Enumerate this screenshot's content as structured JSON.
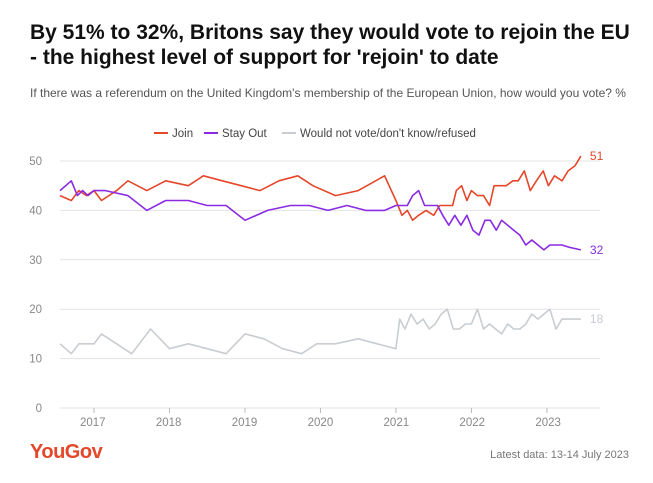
{
  "header": {
    "title": "By 51% to 32%, Britons say they would vote to rejoin the EU - the highest level of support for 'rejoin' to date",
    "subtitle": "If there was a referendum on the United Kingdom's membership of the European Union, how would you vote? %"
  },
  "footer": {
    "brand": "YouGov",
    "latest": "Latest data: 13-14 July 2023"
  },
  "colors": {
    "join": "#e4472a",
    "stay_out": "#8a2be2",
    "would_not_vote": "#c9cdd1",
    "grid": "#e3e3e3",
    "axis_text": "#888888"
  },
  "chart_data": {
    "type": "line",
    "title": "By 51% to 32%, Britons say they would vote to rejoin the EU - the highest level of support for 'rejoin' to date",
    "xlabel": "",
    "ylabel": "%",
    "xlim": [
      2016.55,
      2023.65
    ],
    "ylim": [
      0,
      50
    ],
    "y_ticks": [
      0,
      10,
      20,
      30,
      40,
      50
    ],
    "x_ticks": [
      {
        "label": "2017",
        "value": 2017.0
      },
      {
        "label": "2018",
        "value": 2018.0
      },
      {
        "label": "2019",
        "value": 2019.0
      },
      {
        "label": "2020",
        "value": 2020.0
      },
      {
        "label": "2021",
        "value": 2021.0
      },
      {
        "label": "2022",
        "value": 2022.0
      },
      {
        "label": "2023",
        "value": 2023.0
      }
    ],
    "grid": true,
    "legend_position": "top",
    "series": [
      {
        "name": "Join",
        "key": "join",
        "end_label": "51",
        "points": [
          [
            2016.55,
            43
          ],
          [
            2016.7,
            42
          ],
          [
            2016.8,
            44
          ],
          [
            2016.9,
            43
          ],
          [
            2017.0,
            44
          ],
          [
            2017.1,
            42
          ],
          [
            2017.3,
            44
          ],
          [
            2017.45,
            46
          ],
          [
            2017.7,
            44
          ],
          [
            2017.95,
            46
          ],
          [
            2018.25,
            45
          ],
          [
            2018.45,
            47
          ],
          [
            2018.7,
            46
          ],
          [
            2018.95,
            45
          ],
          [
            2019.2,
            44
          ],
          [
            2019.45,
            46
          ],
          [
            2019.7,
            47
          ],
          [
            2019.9,
            45
          ],
          [
            2020.2,
            43
          ],
          [
            2020.5,
            44
          ],
          [
            2020.85,
            47
          ],
          [
            2021.0,
            42
          ],
          [
            2021.08,
            39
          ],
          [
            2021.15,
            40
          ],
          [
            2021.22,
            38
          ],
          [
            2021.3,
            39
          ],
          [
            2021.4,
            40
          ],
          [
            2021.5,
            39
          ],
          [
            2021.58,
            41
          ],
          [
            2021.66,
            41
          ],
          [
            2021.75,
            41
          ],
          [
            2021.8,
            44
          ],
          [
            2021.87,
            45
          ],
          [
            2021.94,
            42
          ],
          [
            2022.0,
            44
          ],
          [
            2022.08,
            43
          ],
          [
            2022.16,
            43
          ],
          [
            2022.24,
            41
          ],
          [
            2022.3,
            45
          ],
          [
            2022.38,
            45
          ],
          [
            2022.46,
            45
          ],
          [
            2022.55,
            46
          ],
          [
            2022.62,
            46
          ],
          [
            2022.7,
            48
          ],
          [
            2022.78,
            44
          ],
          [
            2022.86,
            46
          ],
          [
            2022.95,
            48
          ],
          [
            2023.02,
            45
          ],
          [
            2023.1,
            47
          ],
          [
            2023.2,
            46
          ],
          [
            2023.28,
            48
          ],
          [
            2023.37,
            49
          ],
          [
            2023.45,
            51
          ]
        ]
      },
      {
        "name": "Stay Out",
        "key": "stay_out",
        "end_label": "32",
        "points": [
          [
            2016.55,
            44
          ],
          [
            2016.7,
            46
          ],
          [
            2016.78,
            43
          ],
          [
            2016.85,
            44
          ],
          [
            2016.92,
            43
          ],
          [
            2017.0,
            44
          ],
          [
            2017.15,
            44
          ],
          [
            2017.45,
            43
          ],
          [
            2017.7,
            40
          ],
          [
            2017.95,
            42
          ],
          [
            2018.25,
            42
          ],
          [
            2018.5,
            41
          ],
          [
            2018.75,
            41
          ],
          [
            2019.0,
            38
          ],
          [
            2019.3,
            40
          ],
          [
            2019.6,
            41
          ],
          [
            2019.85,
            41
          ],
          [
            2020.1,
            40
          ],
          [
            2020.35,
            41
          ],
          [
            2020.6,
            40
          ],
          [
            2020.85,
            40
          ],
          [
            2021.0,
            41
          ],
          [
            2021.08,
            41
          ],
          [
            2021.15,
            41
          ],
          [
            2021.22,
            43
          ],
          [
            2021.3,
            44
          ],
          [
            2021.38,
            41
          ],
          [
            2021.45,
            41
          ],
          [
            2021.55,
            41
          ],
          [
            2021.62,
            39
          ],
          [
            2021.7,
            37
          ],
          [
            2021.78,
            39
          ],
          [
            2021.86,
            37
          ],
          [
            2021.94,
            39
          ],
          [
            2022.02,
            36
          ],
          [
            2022.1,
            35
          ],
          [
            2022.18,
            38
          ],
          [
            2022.25,
            38
          ],
          [
            2022.33,
            36
          ],
          [
            2022.4,
            38
          ],
          [
            2022.48,
            37
          ],
          [
            2022.56,
            36
          ],
          [
            2022.64,
            35
          ],
          [
            2022.72,
            33
          ],
          [
            2022.8,
            34
          ],
          [
            2022.88,
            33
          ],
          [
            2022.96,
            32
          ],
          [
            2023.04,
            33
          ],
          [
            2023.12,
            33
          ],
          [
            2023.2,
            33
          ],
          [
            2023.3,
            32.5
          ],
          [
            2023.45,
            32
          ]
        ]
      },
      {
        "name": "Would not vote/don't know/refused",
        "key": "would_not_vote",
        "end_label": "18",
        "points": [
          [
            2016.55,
            13
          ],
          [
            2016.7,
            11
          ],
          [
            2016.8,
            13
          ],
          [
            2017.0,
            13
          ],
          [
            2017.1,
            15
          ],
          [
            2017.3,
            13
          ],
          [
            2017.5,
            11
          ],
          [
            2017.75,
            16
          ],
          [
            2018.0,
            12
          ],
          [
            2018.25,
            13
          ],
          [
            2018.5,
            12
          ],
          [
            2018.75,
            11
          ],
          [
            2019.0,
            15
          ],
          [
            2019.25,
            14
          ],
          [
            2019.5,
            12
          ],
          [
            2019.75,
            11
          ],
          [
            2019.95,
            13
          ],
          [
            2020.2,
            13
          ],
          [
            2020.5,
            14
          ],
          [
            2020.75,
            13
          ],
          [
            2021.0,
            12
          ],
          [
            2021.05,
            18
          ],
          [
            2021.12,
            16
          ],
          [
            2021.2,
            19
          ],
          [
            2021.28,
            17
          ],
          [
            2021.36,
            18
          ],
          [
            2021.44,
            16
          ],
          [
            2021.52,
            17
          ],
          [
            2021.6,
            19
          ],
          [
            2021.68,
            20
          ],
          [
            2021.76,
            16
          ],
          [
            2021.84,
            16
          ],
          [
            2021.92,
            17
          ],
          [
            2022.0,
            17
          ],
          [
            2022.08,
            20
          ],
          [
            2022.16,
            16
          ],
          [
            2022.24,
            17
          ],
          [
            2022.32,
            16
          ],
          [
            2022.4,
            15
          ],
          [
            2022.48,
            17
          ],
          [
            2022.56,
            16
          ],
          [
            2022.64,
            16
          ],
          [
            2022.72,
            17
          ],
          [
            2022.8,
            19
          ],
          [
            2022.88,
            18
          ],
          [
            2022.96,
            19
          ],
          [
            2023.04,
            20
          ],
          [
            2023.12,
            16
          ],
          [
            2023.2,
            18
          ],
          [
            2023.3,
            18
          ],
          [
            2023.45,
            18
          ]
        ]
      }
    ]
  }
}
